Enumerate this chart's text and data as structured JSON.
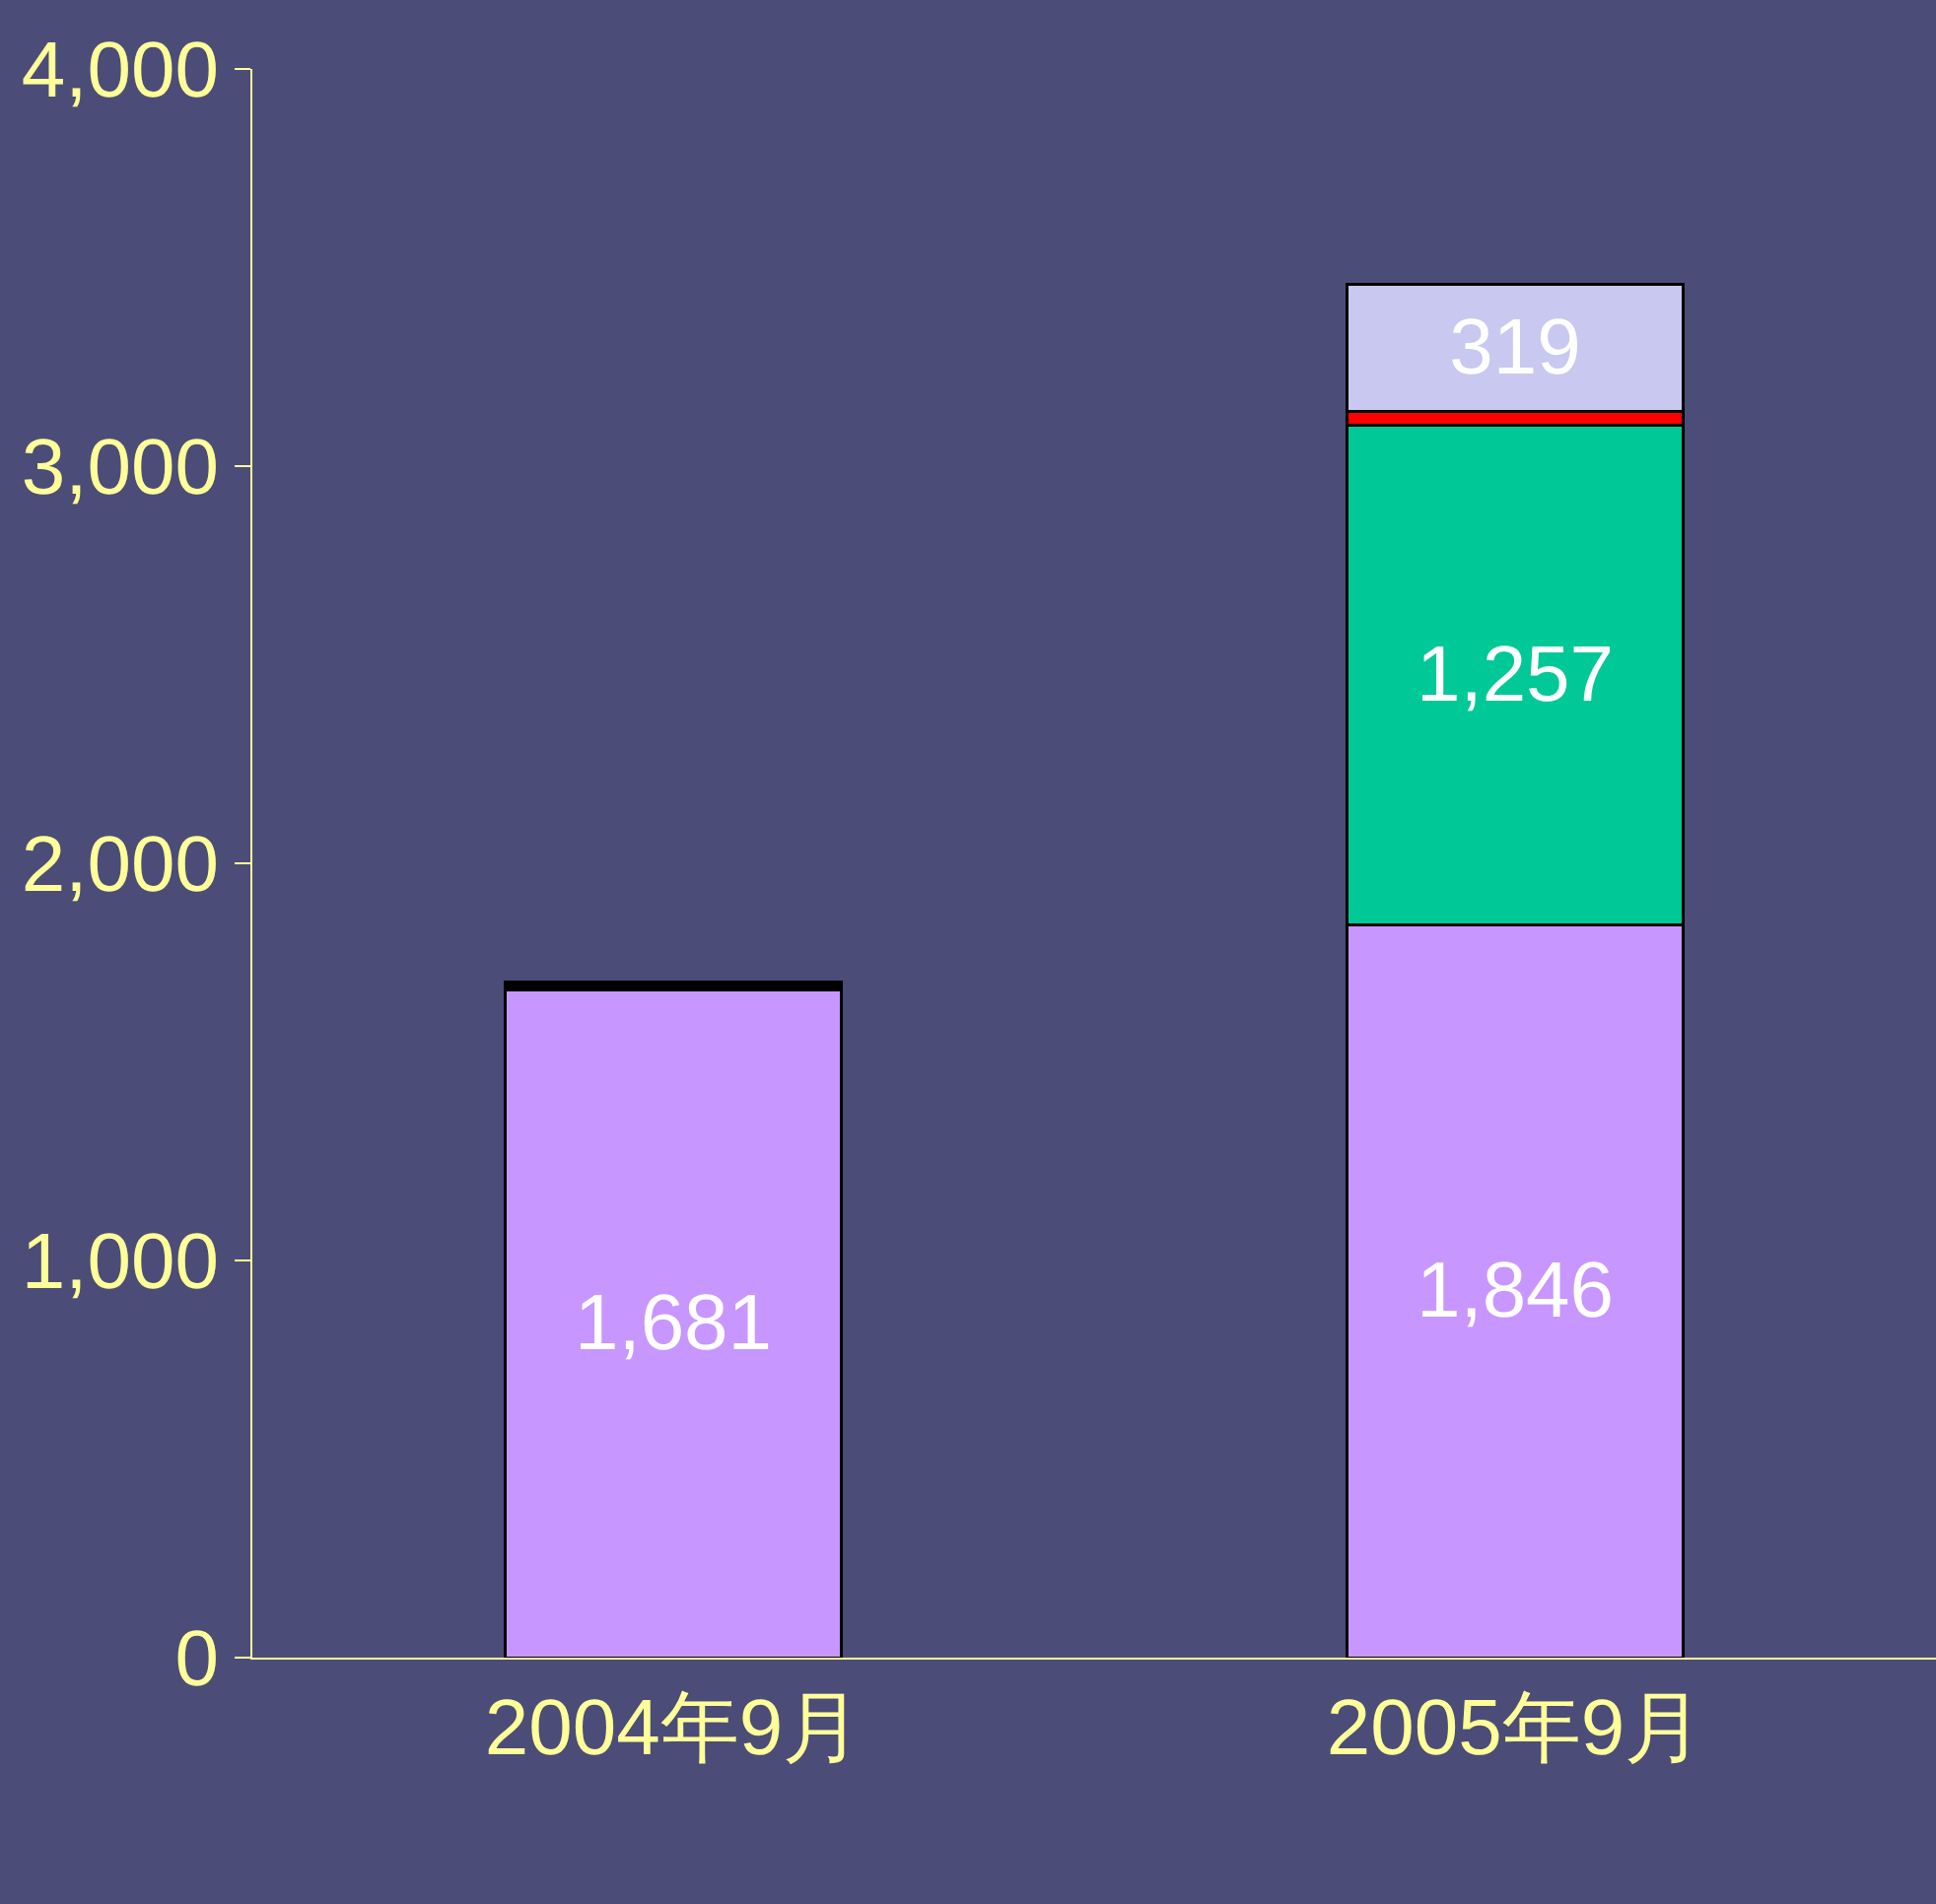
{
  "chart_data": {
    "type": "bar",
    "stacked": true,
    "categories": [
      "2004年9月",
      "2005年9月"
    ],
    "series": [
      {
        "color": "#c896ff",
        "values": [
          1681,
          1846
        ],
        "value_labels": [
          "1,681",
          "1,846"
        ]
      },
      {
        "color": "#00c896",
        "values": [
          null,
          1257
        ],
        "value_labels": [
          null,
          "1,257"
        ]
      },
      {
        "color": "#ff0000",
        "values": [
          null,
          35
        ],
        "value_labels": [
          null,
          null
        ]
      },
      {
        "color": "#000000",
        "values": [
          20,
          null
        ],
        "value_labels": [
          null,
          null
        ]
      },
      {
        "color": "#c8c8f0",
        "values": [
          null,
          319
        ],
        "value_labels": [
          null,
          "319"
        ]
      }
    ],
    "ylim": [
      0,
      4000
    ],
    "yticks": [
      0,
      {
        "value": 1000,
        "label": "1,000"
      },
      {
        "value": 2000,
        "label": "2,000"
      },
      {
        "value": 3000,
        "label": "3,000"
      },
      {
        "value": 4000,
        "label": "4,000"
      }
    ],
    "grid": false,
    "legend": false
  }
}
